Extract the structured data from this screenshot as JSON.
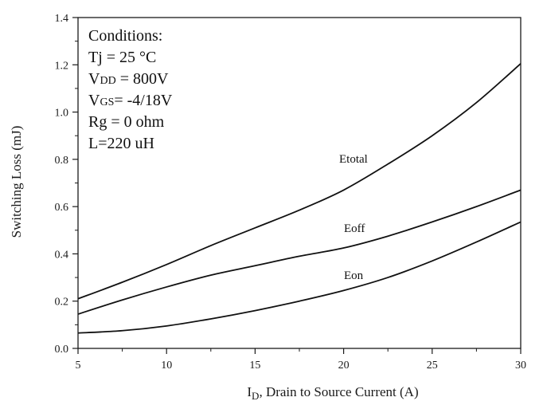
{
  "chart_data": {
    "type": "line",
    "title": "",
    "xlabel": {
      "main": "I",
      "sub": "D",
      "rest": ", Drain to Source Current (A)"
    },
    "ylabel": "Switching Loss (mJ)",
    "xlim": [
      5,
      30
    ],
    "ylim": [
      0.0,
      1.4
    ],
    "x_ticks": [
      "5",
      "10",
      "15",
      "20",
      "25",
      "30"
    ],
    "y_ticks": [
      "0.0",
      "0.2",
      "0.4",
      "0.6",
      "0.8",
      "1.0",
      "1.2",
      "1.4"
    ],
    "grid": false,
    "legend": "none",
    "conditions": {
      "heading": "Conditions:",
      "tj": "Tj = 25 °C",
      "vdd": {
        "main": "V",
        "sub": "DD",
        "rest": " = 800V"
      },
      "vgs": {
        "main": "V",
        "sub": "GS",
        "rest": "= -4/18V"
      },
      "rg": "Rg = 0 ohm",
      "l": "L=220 uH"
    },
    "series": [
      {
        "name": "Etotal",
        "x": [
          5,
          7.5,
          10,
          12.5,
          15,
          17.5,
          20,
          22.5,
          25,
          27.5,
          30
        ],
        "values": [
          0.21,
          0.28,
          0.355,
          0.435,
          0.51,
          0.585,
          0.67,
          0.78,
          0.9,
          1.04,
          1.205
        ]
      },
      {
        "name": "Eoff",
        "x": [
          5,
          7.5,
          10,
          12.5,
          15,
          17.5,
          20,
          22.5,
          25,
          27.5,
          30
        ],
        "values": [
          0.145,
          0.205,
          0.26,
          0.31,
          0.35,
          0.39,
          0.425,
          0.475,
          0.535,
          0.6,
          0.67
        ]
      },
      {
        "name": "Eon",
        "x": [
          5,
          7.5,
          10,
          12.5,
          15,
          17.5,
          20,
          22.5,
          25,
          27.5,
          30
        ],
        "values": [
          0.065,
          0.075,
          0.095,
          0.125,
          0.16,
          0.2,
          0.245,
          0.3,
          0.37,
          0.45,
          0.535
        ]
      }
    ]
  }
}
